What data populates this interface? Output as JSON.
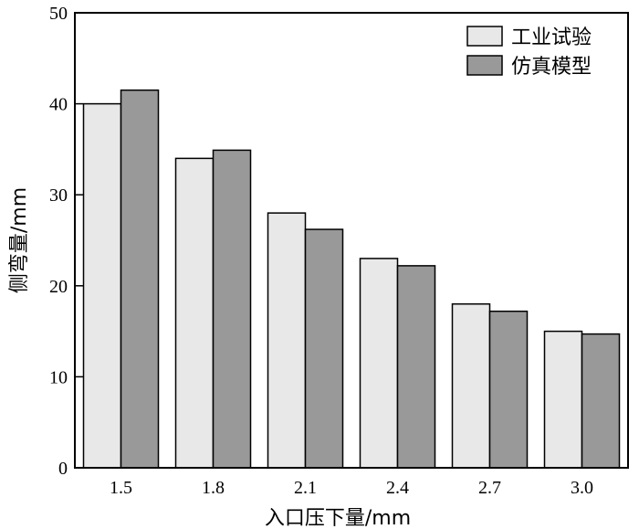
{
  "chart_data": {
    "type": "bar",
    "xlabel": "入口压下量/mm",
    "ylabel": "侧弯量/mm",
    "categories": [
      "1.5",
      "1.8",
      "2.1",
      "2.4",
      "2.7",
      "3.0"
    ],
    "ylim": [
      0,
      50
    ],
    "yticks": [
      0,
      10,
      20,
      30,
      40,
      50
    ],
    "series": [
      {
        "name": "工业试验",
        "color": "#e8e8e8",
        "values": [
          40.0,
          34.0,
          28.0,
          23.0,
          18.0,
          15.0
        ]
      },
      {
        "name": "仿真模型",
        "color": "#999999",
        "values": [
          41.5,
          34.9,
          26.2,
          22.2,
          17.2,
          14.7
        ]
      }
    ],
    "legend": "top-right",
    "grid": false
  }
}
